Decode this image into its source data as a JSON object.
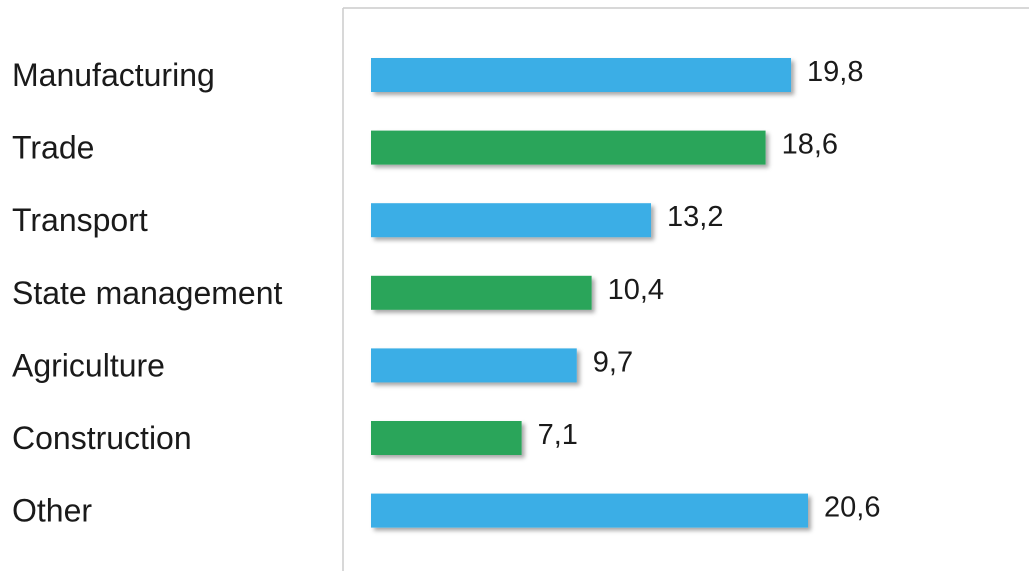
{
  "chart_data": {
    "type": "bar",
    "orientation": "horizontal",
    "categories": [
      "Manufacturing",
      "Trade",
      "Transport",
      "State management",
      "Agriculture",
      "Construction",
      "Other"
    ],
    "values": [
      19.8,
      18.6,
      13.2,
      10.4,
      9.7,
      7.1,
      20.6
    ],
    "value_labels": [
      "19,8",
      "18,6",
      "13,2",
      "10,4",
      "9,7",
      "7,1",
      "20,6"
    ],
    "title": "",
    "xlabel": "",
    "ylabel": "",
    "xlim": [
      0,
      20.6
    ],
    "grid": false,
    "legend": "none",
    "colors": [
      "#3AAEE6",
      "#2BA55A",
      "#3AAEE6",
      "#2BA55A",
      "#3AAEE6",
      "#2BA55A",
      "#3AAEE6"
    ],
    "axis_line_color": "#cccccc",
    "shadow_color": "#9a9a9a"
  }
}
